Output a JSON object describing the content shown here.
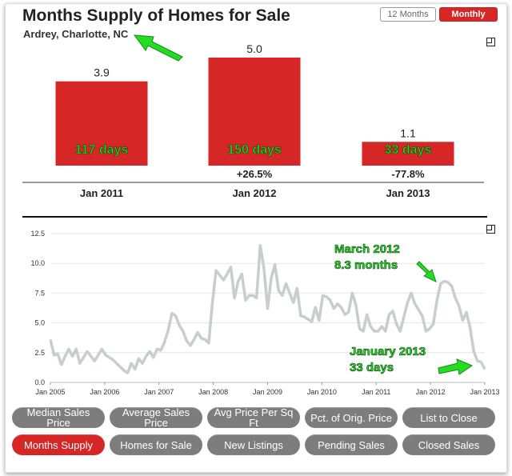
{
  "header": {
    "title": "Months Supply of Homes for Sale",
    "subtitle": "Ardrey, Charlotte, NC",
    "toggle_12_months": "12 Months",
    "toggle_monthly": "Monthly"
  },
  "colors": {
    "bar": "#d62626",
    "line": "#c6cfcc",
    "annotation": "#22dd22",
    "button": "#7d7d7d",
    "button_active": "#d62626"
  },
  "chart_data": [
    {
      "type": "bar",
      "categories": [
        "Jan 2011",
        "Jan 2012",
        "Jan 2013"
      ],
      "values": [
        3.9,
        5.0,
        1.1
      ],
      "value_labels": [
        "3.9",
        "5.0",
        "1.1"
      ],
      "changes": [
        "",
        "+26.5%",
        "-77.8%"
      ],
      "annotations": [
        "117 days",
        "150 days",
        "33 days"
      ],
      "ylim": [
        0,
        5.0
      ]
    },
    {
      "type": "line",
      "ylim": [
        0,
        12.5
      ],
      "yticks": [
        "0.0",
        "2.5",
        "5.0",
        "7.5",
        "10.0",
        "12.5"
      ],
      "xticks": [
        "Jan 2005",
        "Jan 2006",
        "Jan 2007",
        "Jan 2008",
        "Jan 2009",
        "Jan 2010",
        "Jan 2011",
        "Jan 2012",
        "Jan 2013"
      ],
      "x_start_year": 2005,
      "values": [
        3.6,
        2.3,
        2.4,
        1.5,
        2.2,
        2.8,
        2.2,
        2.8,
        1.6,
        2.1,
        2.6,
        2.2,
        1.8,
        2.3,
        2.8,
        2.3,
        2.1,
        1.9,
        1.6,
        1.3,
        1.0,
        0.8,
        1.6,
        1.1,
        2.0,
        1.6,
        2.2,
        2.6,
        2.1,
        2.8,
        2.7,
        3.4,
        4.4,
        5.8,
        5.6,
        4.8,
        4.3,
        3.5,
        3.1,
        3.6,
        4.2,
        3.7,
        3.6,
        3.3,
        6.7,
        9.4,
        9.0,
        8.6,
        9.1,
        9.7,
        7.1,
        8.5,
        9.1,
        6.9,
        7.3,
        7.3,
        7.1,
        11.5,
        9.6,
        6.2,
        8.8,
        9.9,
        7.7,
        7.3,
        8.3,
        7.5,
        6.7,
        7.9,
        5.6,
        5.5,
        5.3,
        5.1,
        6.3,
        5.2,
        7.3,
        7.2,
        6.9,
        6.2,
        6.6,
        6.3,
        5.7,
        5.9,
        7.5,
        6.5,
        4.5,
        4.3,
        5.7,
        4.7,
        4.3,
        4.3,
        4.7,
        4.3,
        5.7,
        6.0,
        4.9,
        4.3,
        5.5,
        6.7,
        7.5,
        6.6,
        6.1,
        5.6,
        4.3,
        4.5,
        4.9,
        6.9,
        8.3,
        8.5,
        8.4,
        8.1,
        7.1,
        6.4,
        5.2,
        5.9,
        4.6,
        2.6,
        1.8,
        1.7,
        1.1
      ],
      "annotations": [
        {
          "line1": "March 2012",
          "line2": "8.3 months"
        },
        {
          "line1": "January 2013",
          "line2": "33 days"
        }
      ]
    }
  ],
  "buttons": [
    "Median Sales Price",
    "Average Sales Price",
    "Avg Price Per Sq Ft",
    "Pct. of Orig. Price",
    "List to Close",
    "Months Supply",
    "Homes for Sale",
    "New Listings",
    "Pending Sales",
    "Closed Sales"
  ]
}
